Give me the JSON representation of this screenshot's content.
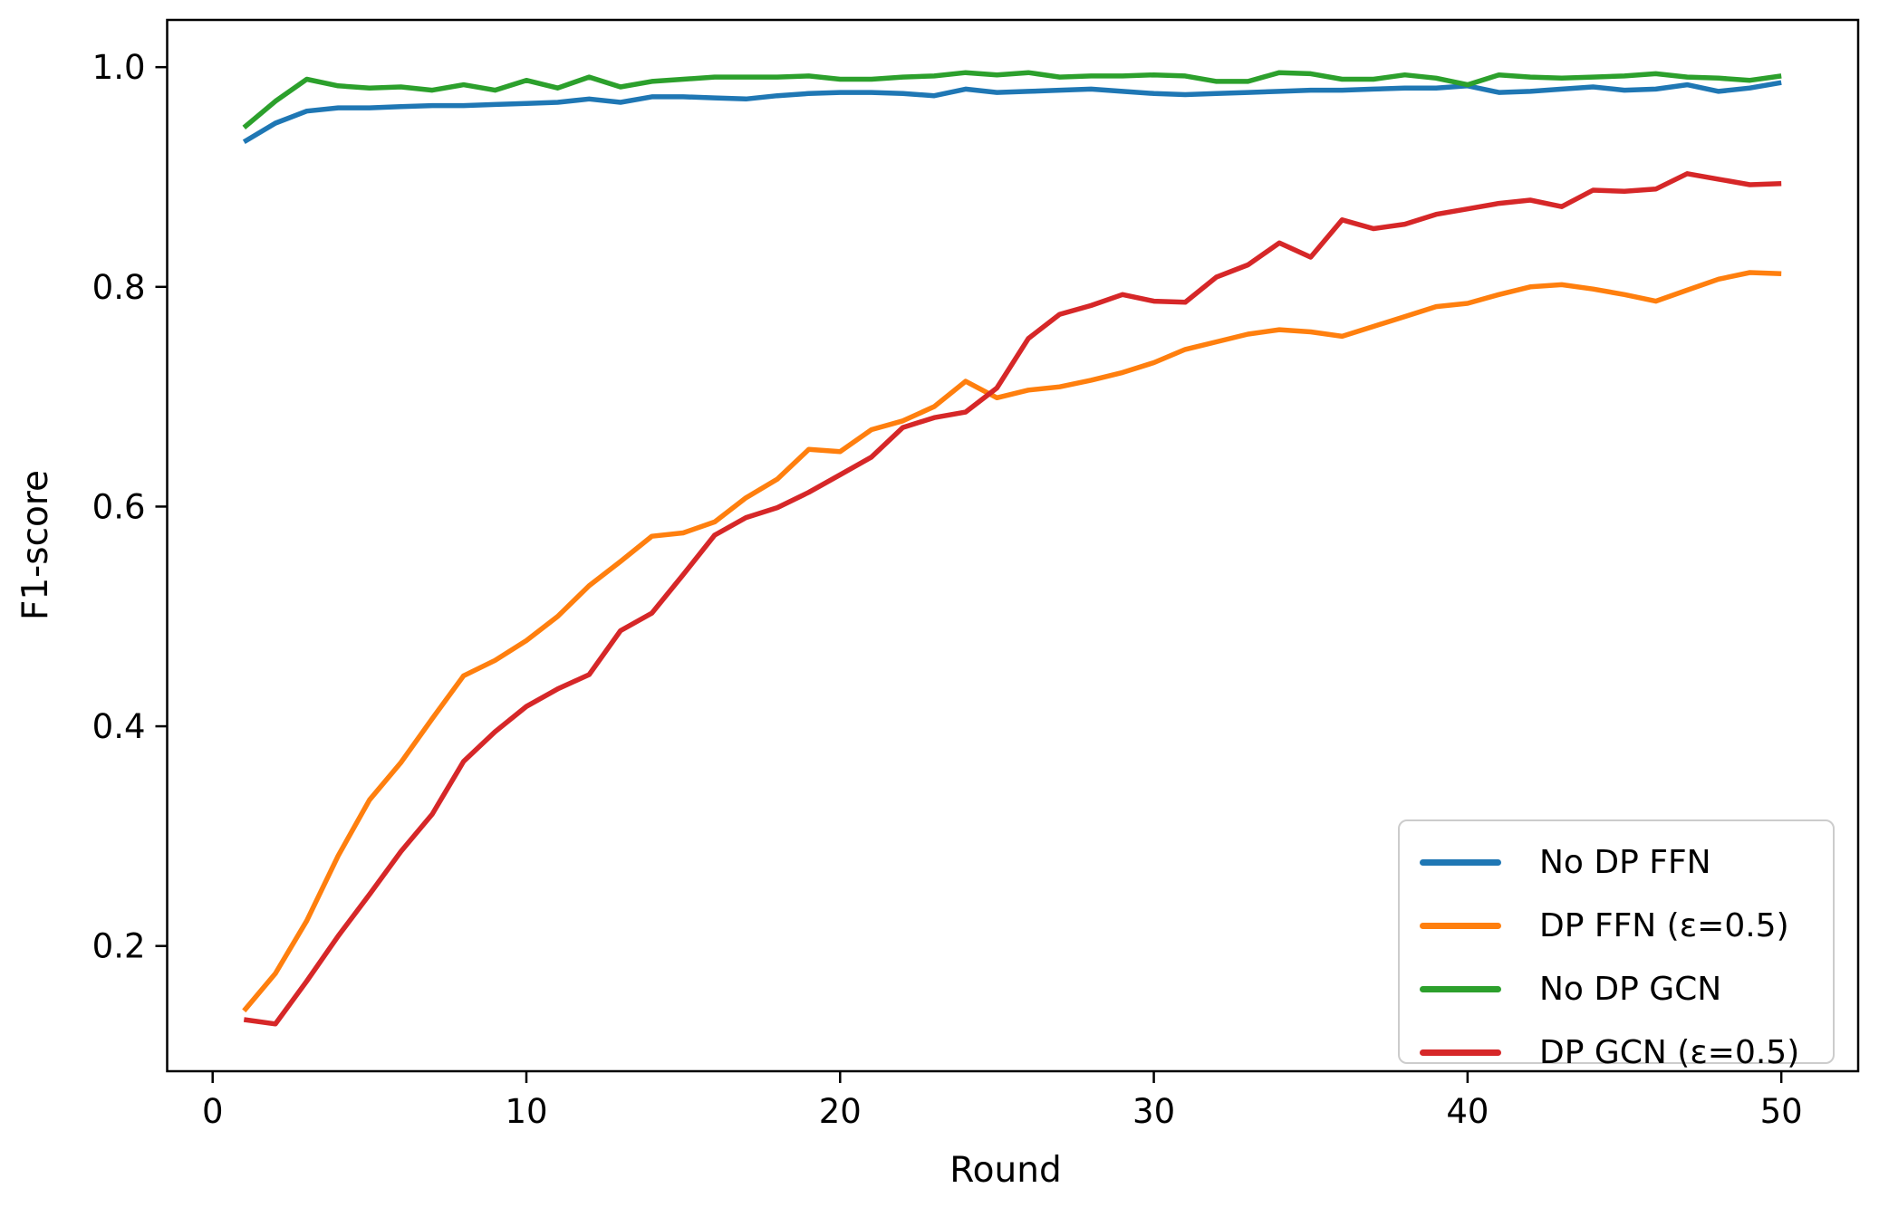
{
  "chart_data": {
    "type": "line",
    "title": "",
    "xlabel": "Round",
    "ylabel": "F1-score",
    "x": [
      1,
      2,
      3,
      4,
      5,
      6,
      7,
      8,
      9,
      10,
      11,
      12,
      13,
      14,
      15,
      16,
      17,
      18,
      19,
      20,
      21,
      22,
      23,
      24,
      25,
      26,
      27,
      28,
      29,
      30,
      31,
      32,
      33,
      34,
      35,
      36,
      37,
      38,
      39,
      40,
      41,
      42,
      43,
      44,
      45,
      46,
      47,
      48,
      49,
      50
    ],
    "xticks": {
      "values": [
        0,
        10,
        20,
        30,
        40,
        50
      ],
      "labels": [
        "0",
        "10",
        "20",
        "30",
        "40",
        "50"
      ]
    },
    "yticks": {
      "values": [
        0.2,
        0.4,
        0.6,
        0.8,
        1.0
      ],
      "labels": [
        "0.2",
        "0.4",
        "0.6",
        "0.8",
        "1.0"
      ]
    },
    "xlim": [
      -1.45,
      52.45
    ],
    "ylim": [
      0.086,
      1.043
    ],
    "grid": false,
    "legend_position": "lower right",
    "series": [
      {
        "name": "No DP FFN",
        "color": "#1f77b4",
        "values": [
          0.932,
          0.949,
          0.96,
          0.963,
          0.963,
          0.964,
          0.965,
          0.965,
          0.966,
          0.967,
          0.968,
          0.971,
          0.968,
          0.973,
          0.973,
          0.972,
          0.971,
          0.974,
          0.976,
          0.977,
          0.977,
          0.976,
          0.974,
          0.98,
          0.977,
          0.978,
          0.979,
          0.98,
          0.978,
          0.976,
          0.975,
          0.976,
          0.977,
          0.978,
          0.979,
          0.979,
          0.98,
          0.981,
          0.981,
          0.983,
          0.977,
          0.978,
          0.98,
          0.982,
          0.979,
          0.98,
          0.984,
          0.978,
          0.981,
          0.986
        ]
      },
      {
        "name": "DP FFN (ε=0.5)",
        "color": "#ff7f0e",
        "values": [
          0.141,
          0.175,
          0.223,
          0.282,
          0.333,
          0.367,
          0.407,
          0.446,
          0.46,
          0.478,
          0.5,
          0.528,
          0.55,
          0.573,
          0.576,
          0.586,
          0.608,
          0.625,
          0.652,
          0.65,
          0.67,
          0.678,
          0.691,
          0.714,
          0.699,
          0.706,
          0.709,
          0.715,
          0.722,
          0.731,
          0.743,
          0.75,
          0.757,
          0.761,
          0.759,
          0.755,
          0.764,
          0.773,
          0.782,
          0.785,
          0.793,
          0.8,
          0.802,
          0.798,
          0.793,
          0.787,
          0.797,
          0.807,
          0.813,
          0.812
        ]
      },
      {
        "name": "No DP GCN",
        "color": "#2ca02c",
        "values": [
          0.945,
          0.969,
          0.989,
          0.983,
          0.981,
          0.982,
          0.979,
          0.984,
          0.979,
          0.988,
          0.981,
          0.991,
          0.982,
          0.987,
          0.989,
          0.991,
          0.991,
          0.991,
          0.992,
          0.989,
          0.989,
          0.991,
          0.992,
          0.995,
          0.993,
          0.995,
          0.991,
          0.992,
          0.992,
          0.993,
          0.992,
          0.987,
          0.987,
          0.995,
          0.994,
          0.989,
          0.989,
          0.993,
          0.99,
          0.984,
          0.993,
          0.991,
          0.99,
          0.991,
          0.992,
          0.994,
          0.991,
          0.99,
          0.988,
          0.992
        ]
      },
      {
        "name": "DP GCN (ε=0.5)",
        "color": "#d62728",
        "values": [
          0.133,
          0.129,
          0.168,
          0.209,
          0.247,
          0.286,
          0.32,
          0.368,
          0.395,
          0.418,
          0.434,
          0.447,
          0.487,
          0.503,
          0.538,
          0.574,
          0.59,
          0.599,
          0.613,
          0.629,
          0.645,
          0.672,
          0.681,
          0.686,
          0.708,
          0.753,
          0.775,
          0.783,
          0.793,
          0.787,
          0.786,
          0.809,
          0.82,
          0.84,
          0.827,
          0.861,
          0.853,
          0.857,
          0.866,
          0.871,
          0.876,
          0.879,
          0.873,
          0.888,
          0.887,
          0.889,
          0.903,
          0.898,
          0.893,
          0.894
        ]
      }
    ]
  }
}
